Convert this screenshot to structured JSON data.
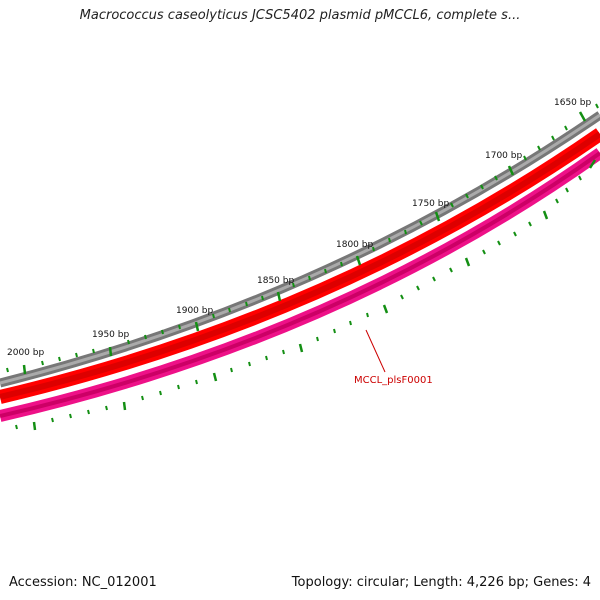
{
  "title": "Macrococcus caseolyticus JCSC5402 plasmid pMCCL6, complete s...",
  "footer": {
    "accession": "Accession: NC_012001",
    "summary": "Topology: circular; Length: 4,226 bp; Genes: 4"
  },
  "map": {
    "ruler_labels": [
      "1650 bp",
      "1700 bp",
      "1750 bp",
      "1800 bp",
      "1850 bp",
      "1900 bp",
      "1950 bp",
      "2000 bp"
    ],
    "gene_label": "MCCL_plsF0001",
    "colors": {
      "backbone": "#777777",
      "cds": "#ff0000",
      "gene": "#ee1188",
      "ticks": "#138f13",
      "label": "#cc0000"
    }
  }
}
